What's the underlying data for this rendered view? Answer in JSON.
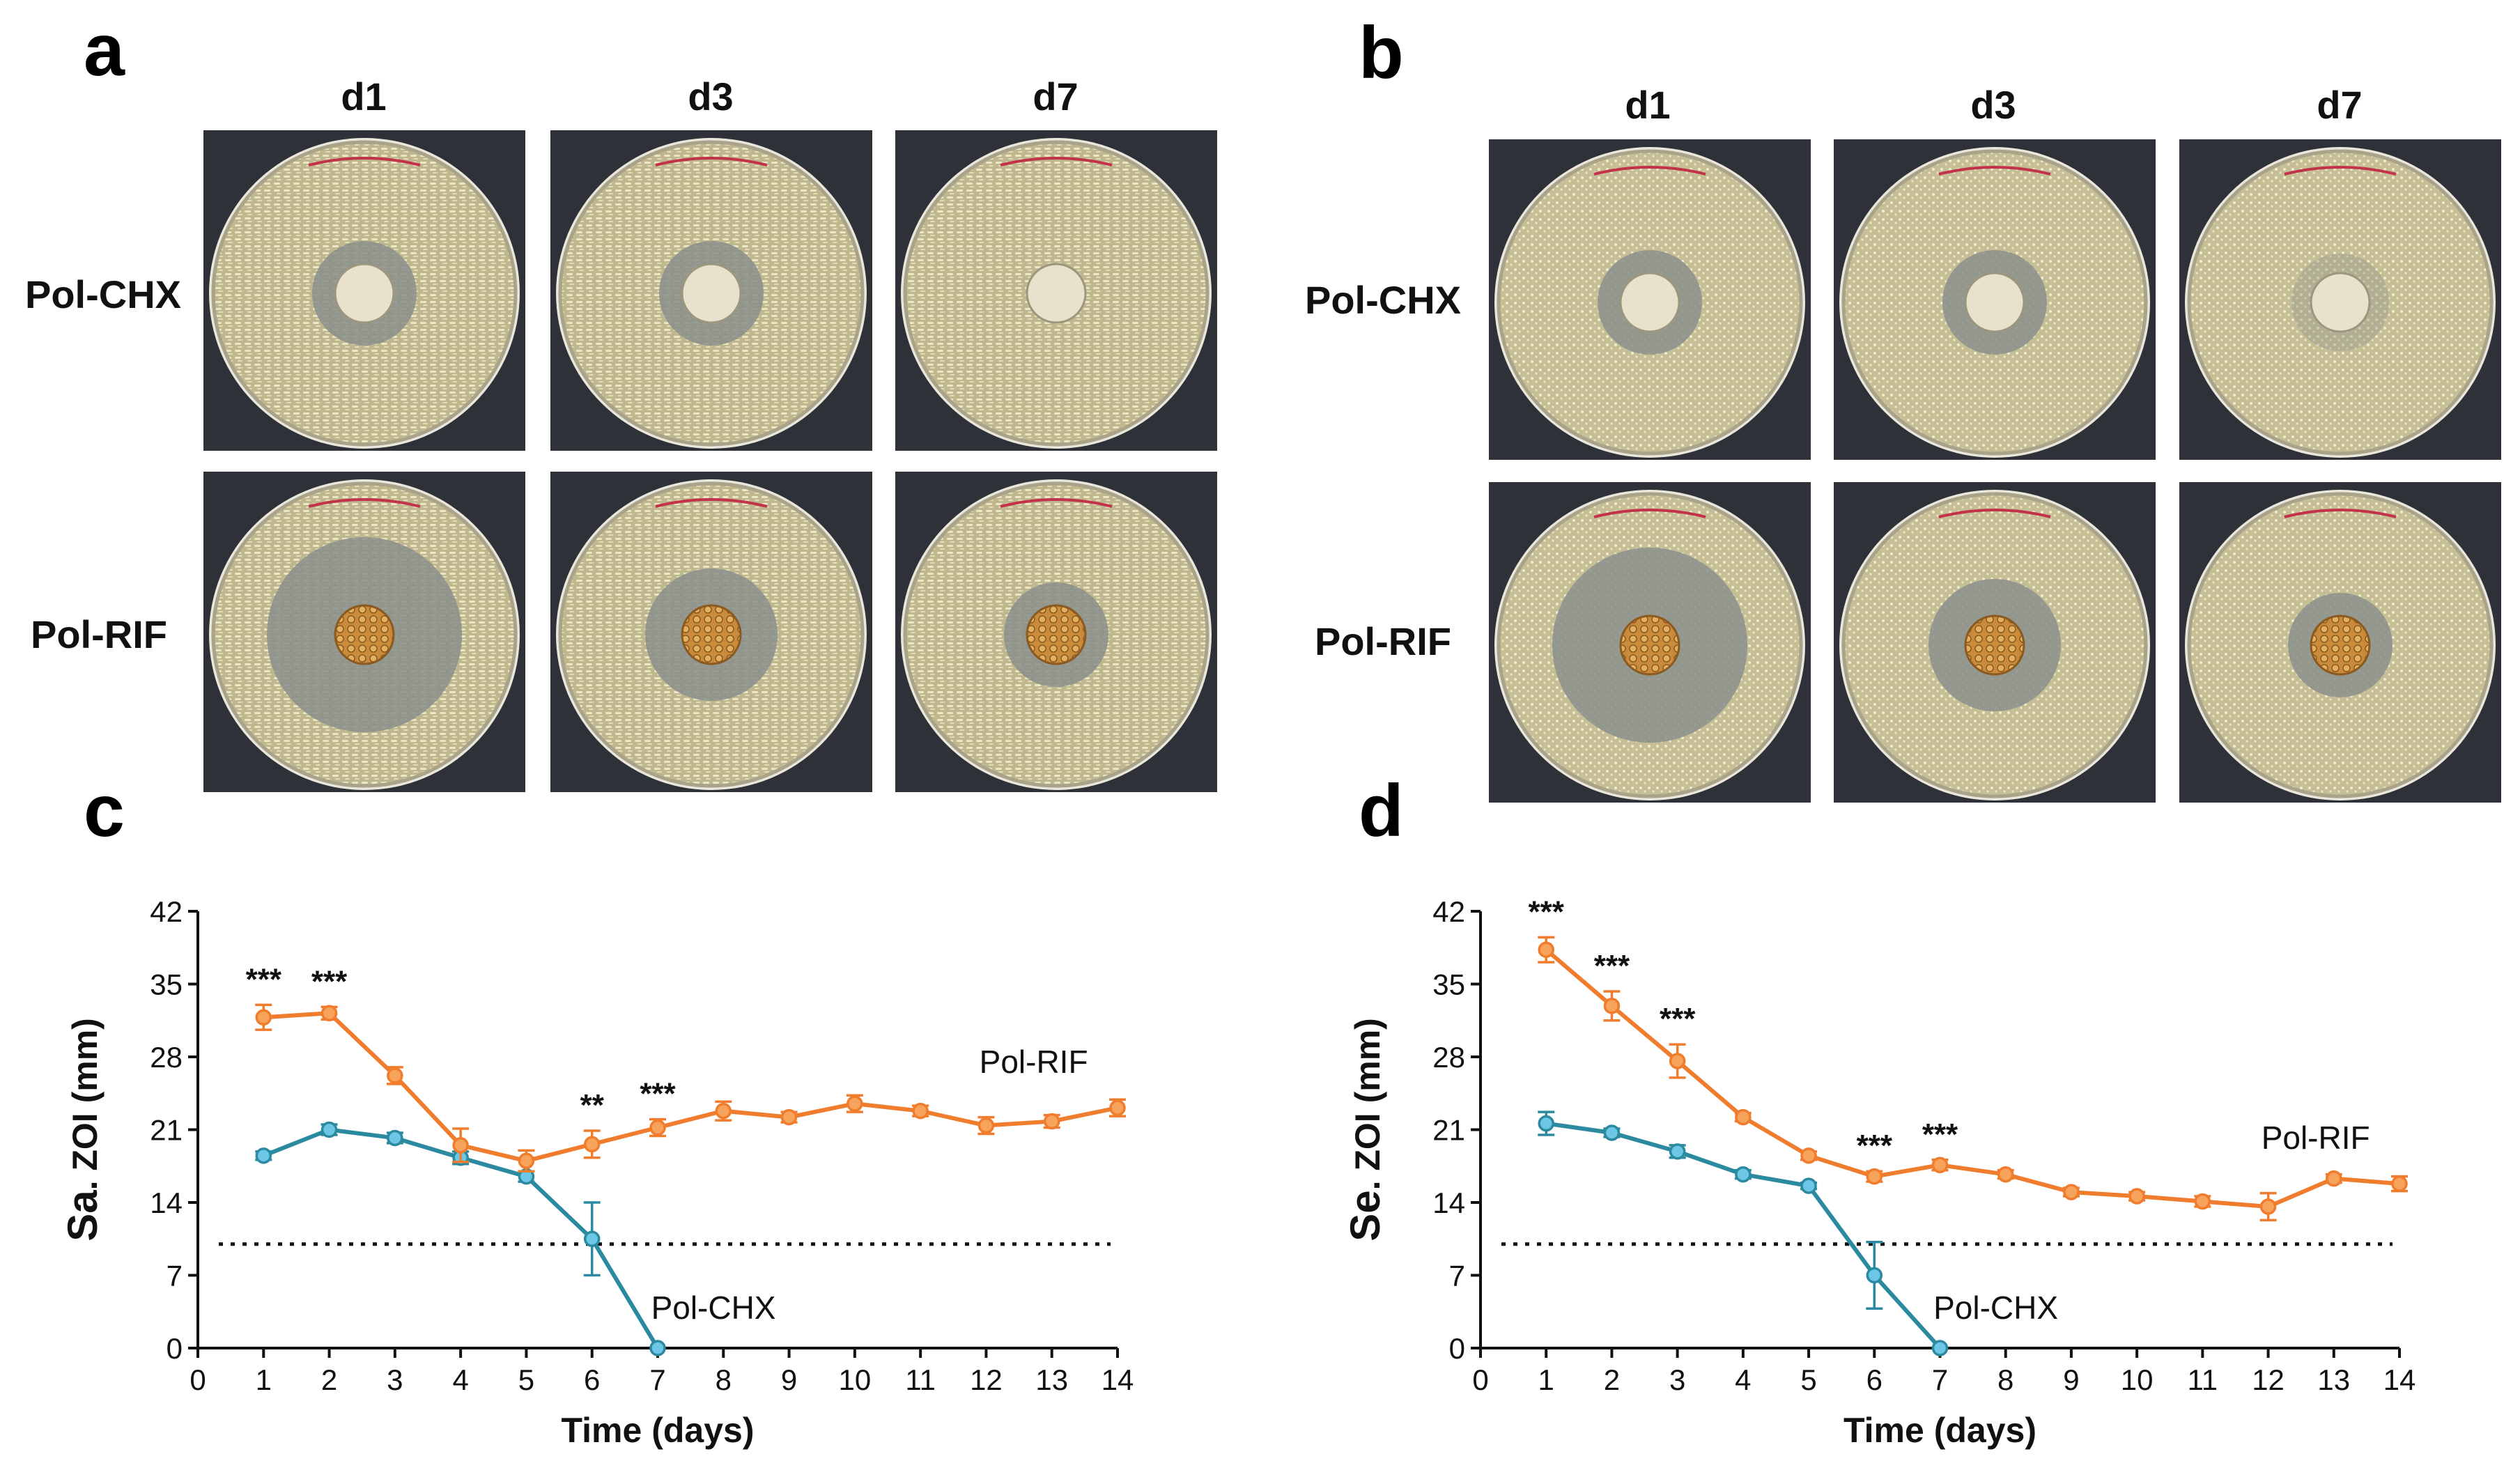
{
  "panels": {
    "a": {
      "letter": "a",
      "columns": [
        "d1",
        "d3",
        "d7"
      ],
      "rows": [
        "Pol-CHX",
        "Pol-RIF"
      ],
      "photos": [
        {
          "row": 0,
          "col": 0,
          "zone": "small"
        },
        {
          "row": 0,
          "col": 1,
          "zone": "small"
        },
        {
          "row": 0,
          "col": 2,
          "zone": "none"
        },
        {
          "row": 1,
          "col": 0,
          "zone": "large"
        },
        {
          "row": 1,
          "col": 1,
          "zone": "medium"
        },
        {
          "row": 1,
          "col": 2,
          "zone": "small"
        }
      ]
    },
    "b": {
      "letter": "b",
      "columns": [
        "d1",
        "d3",
        "d7"
      ],
      "rows": [
        "Pol-CHX",
        "Pol-RIF"
      ],
      "photos": [
        {
          "row": 0,
          "col": 0,
          "zone": "small"
        },
        {
          "row": 0,
          "col": 1,
          "zone": "small"
        },
        {
          "row": 0,
          "col": 2,
          "zone": "faint"
        },
        {
          "row": 1,
          "col": 0,
          "zone": "large"
        },
        {
          "row": 1,
          "col": 1,
          "zone": "medium"
        },
        {
          "row": 1,
          "col": 2,
          "zone": "small"
        }
      ]
    }
  },
  "colors": {
    "rif": "#ef7d2d",
    "rif_fill": "#f7a35c",
    "chx": "#2b8aa0",
    "chx_fill": "#6cc6e6",
    "photo_bg": "#2f3138",
    "agar_a": "#cfc8a0",
    "agar_b": "#d6cfa6",
    "clear_zone": "#8a8f8c",
    "scaffold": "#c98a3a"
  },
  "chart_data": [
    {
      "panel": "c",
      "type": "line",
      "title": "",
      "xlabel": "Time (days)",
      "ylabel_prefix": "Sa",
      "ylabel_rest": ". ZOI (mm)",
      "xlim": [
        0,
        14
      ],
      "ylim": [
        0,
        42
      ],
      "xticks": [
        0,
        1,
        2,
        3,
        4,
        5,
        6,
        7,
        8,
        9,
        10,
        11,
        12,
        13,
        14
      ],
      "yticks": [
        0,
        7,
        14,
        21,
        28,
        35,
        42
      ],
      "threshold": 10,
      "series": [
        {
          "name": "Pol-RIF",
          "x": [
            1,
            2,
            3,
            4,
            5,
            6,
            7,
            8,
            9,
            10,
            11,
            12,
            13,
            14
          ],
          "y": [
            31.8,
            32.2,
            26.2,
            19.5,
            18.0,
            19.6,
            21.2,
            22.8,
            22.2,
            23.5,
            22.8,
            21.4,
            21.8,
            23.1
          ],
          "err": [
            1.2,
            0.6,
            0.8,
            1.6,
            1.0,
            1.3,
            0.8,
            0.9,
            0.5,
            0.8,
            0.5,
            0.8,
            0.6,
            0.8
          ]
        },
        {
          "name": "Pol-CHX",
          "x": [
            1,
            2,
            3,
            4,
            5,
            6,
            7
          ],
          "y": [
            18.5,
            21.0,
            20.2,
            18.3,
            16.5,
            10.5,
            0
          ],
          "err": [
            0.4,
            0.5,
            0.5,
            0.6,
            0.5,
            3.5,
            0
          ]
        }
      ],
      "significance": [
        {
          "x": 1,
          "text": "***"
        },
        {
          "x": 2,
          "text": "***"
        },
        {
          "x": 6,
          "text": "**"
        },
        {
          "x": 7,
          "text": "***"
        }
      ]
    },
    {
      "panel": "d",
      "type": "line",
      "title": "",
      "xlabel": "Time (days)",
      "ylabel_prefix": "Se",
      "ylabel_rest": ". ZOI (mm)",
      "xlim": [
        0,
        14
      ],
      "ylim": [
        0,
        42
      ],
      "xticks": [
        0,
        1,
        2,
        3,
        4,
        5,
        6,
        7,
        8,
        9,
        10,
        11,
        12,
        13,
        14
      ],
      "yticks": [
        0,
        7,
        14,
        21,
        28,
        35,
        42
      ],
      "threshold": 10,
      "series": [
        {
          "name": "Pol-RIF",
          "x": [
            1,
            2,
            3,
            4,
            5,
            6,
            7,
            8,
            9,
            10,
            11,
            12,
            13,
            14
          ],
          "y": [
            38.3,
            32.9,
            27.6,
            22.2,
            18.5,
            16.5,
            17.6,
            16.7,
            15.0,
            14.6,
            14.1,
            13.6,
            16.3,
            15.8
          ],
          "err": [
            1.2,
            1.4,
            1.6,
            0.4,
            0.4,
            0.5,
            0.5,
            0.4,
            0.4,
            0.4,
            0.5,
            1.3,
            0.4,
            0.7
          ]
        },
        {
          "name": "Pol-CHX",
          "x": [
            1,
            2,
            3,
            4,
            5,
            6,
            7
          ],
          "y": [
            21.6,
            20.7,
            18.9,
            16.7,
            15.6,
            7.0,
            0
          ],
          "err": [
            1.1,
            0.4,
            0.6,
            0.4,
            0.3,
            3.2,
            0
          ]
        }
      ],
      "significance": [
        {
          "x": 1,
          "text": "***"
        },
        {
          "x": 2,
          "text": "***"
        },
        {
          "x": 3,
          "text": "***"
        },
        {
          "x": 6,
          "text": "***"
        },
        {
          "x": 7,
          "text": "***"
        }
      ]
    }
  ]
}
